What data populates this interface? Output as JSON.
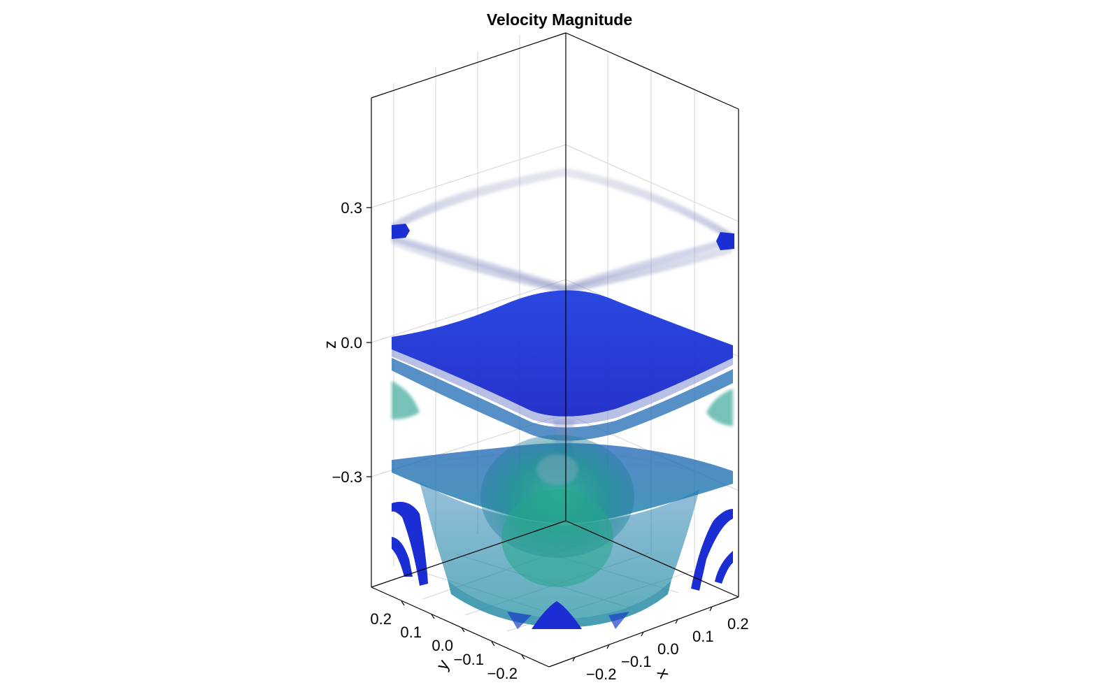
{
  "chart_data": {
    "type": "volume-3d",
    "title": "Velocity Magnitude",
    "xlabel": "x",
    "ylabel": "y",
    "zlabel": "z",
    "x_ticks": [
      "−0.2",
      "−0.1",
      "0.0",
      "0.1",
      "0.2"
    ],
    "y_ticks": [
      "0.2",
      "0.1",
      "0.0",
      "−0.1",
      "−0.2"
    ],
    "z_ticks": [
      "0.3",
      "0.0",
      "−0.3"
    ],
    "x_tick_values": [
      -0.2,
      -0.1,
      0.0,
      0.1,
      0.2
    ],
    "y_tick_values": [
      0.2,
      0.1,
      0.0,
      -0.1,
      -0.2
    ],
    "z_tick_values": [
      0.3,
      0.0,
      -0.3
    ],
    "xlim": [
      -0.25,
      0.25
    ],
    "ylim": [
      -0.25,
      0.25
    ],
    "zlim": [
      -0.55,
      0.55
    ],
    "grid": true,
    "colors": {
      "low": "#1a2ed4",
      "mid": "#1a6fa8",
      "high": "#24a58a",
      "faint": "#8a93b8"
    }
  }
}
